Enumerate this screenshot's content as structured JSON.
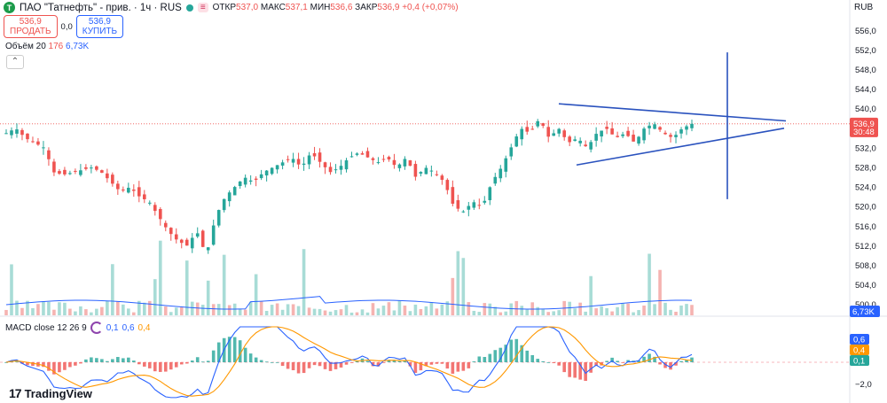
{
  "header": {
    "logo_letter": "Т",
    "title": "ПАО \"Татнефть\" - прив. · 1ч · RUS",
    "tag": "≡",
    "open_label": "ОТКР",
    "open": "537,0",
    "high_label": "МАКС",
    "high": "537,1",
    "low_label": "МИН",
    "low": "536,6",
    "close_label": "ЗАКР",
    "close": "536,9",
    "change": "+0,4 (+0,07%)"
  },
  "trade": {
    "sell_price": "536,9",
    "sell_label": "ПРОДАТЬ",
    "spread": "0,0",
    "buy_price": "536,9",
    "buy_label": "КУПИТЬ"
  },
  "volume_legend": {
    "name": "Объём 20",
    "last": "176",
    "avg": "6,73K"
  },
  "macd_legend": {
    "name": "MACD close 12 26 9",
    "hist": "0,1",
    "macd": "0,6",
    "signal": "0,4"
  },
  "currency": "RUB",
  "price_badge": {
    "price": "536,9",
    "countdown": "30:48"
  },
  "volume_badge": "6,73K",
  "macd_badges": [
    "0,6",
    "0,4",
    "0,1"
  ],
  "macd_tick": "−2,0",
  "brand": "TradingView",
  "colors": {
    "up": "#26a69a",
    "down": "#ef5350",
    "drawing": "#2a52be",
    "macd": "#2962ff",
    "signal": "#ff9800"
  },
  "chart_data": {
    "type": "candlestick",
    "y_ticks": [
      "556,0",
      "552,0",
      "548,0",
      "544,0",
      "540,0",
      "536,0",
      "532,0",
      "528,0",
      "524,0",
      "520,0",
      "516,0",
      "512,0",
      "508,0",
      "504,0",
      "500,0"
    ],
    "ylim": [
      498.5,
      557.5
    ],
    "close_path": [
      535,
      536,
      534,
      533,
      532,
      527,
      526.5,
      527,
      527.5,
      528,
      527,
      525,
      523,
      524,
      522,
      521,
      518,
      515,
      513,
      512,
      515,
      510,
      518,
      522,
      524,
      526,
      525,
      527,
      528,
      529,
      530,
      528,
      531,
      529,
      527,
      528,
      530,
      531,
      530,
      529,
      530,
      528,
      530,
      526,
      528,
      527,
      525,
      520,
      519,
      521,
      520,
      525,
      528,
      532,
      536,
      535,
      538,
      534,
      536,
      533,
      534,
      532,
      535,
      536,
      534,
      535,
      533,
      536,
      537,
      535,
      534,
      536,
      536.9
    ],
    "drawings": {
      "triangle_upper": {
        "from": [
          0,
          541
        ],
        "to": [
          1,
          537.5
        ]
      },
      "triangle_lower": {
        "from": [
          0,
          528.5
        ],
        "to": [
          1,
          536
        ]
      },
      "vertical": {
        "top": 551.5,
        "bottom": 521.5
      }
    }
  }
}
